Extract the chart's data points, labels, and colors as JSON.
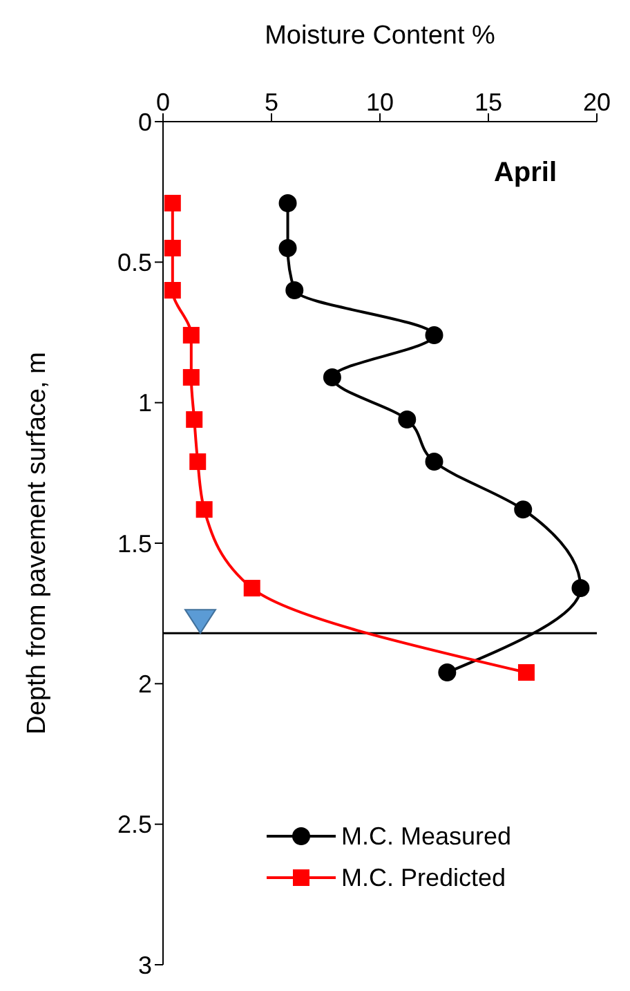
{
  "chart_data": {
    "type": "line",
    "title": "April",
    "xlabel": "Moisture Content %",
    "ylabel": "Depth from pavement surface, m",
    "xlim": [
      0,
      20
    ],
    "xticks": [
      0,
      5,
      10,
      15,
      20
    ],
    "ylim": [
      3,
      0
    ],
    "yticks": [
      0,
      0.5,
      1,
      1.5,
      2,
      2.5,
      3
    ],
    "grid": false,
    "legend": "bottom right",
    "series": [
      {
        "name": "M.C. Measured",
        "color": "#000000",
        "marker": "circle",
        "x": [
          5.75,
          5.75,
          6.06,
          12.5,
          7.8,
          11.25,
          12.5,
          16.6,
          19.25,
          13.1
        ],
        "values": [
          0.29,
          0.45,
          0.6,
          0.76,
          0.91,
          1.06,
          1.21,
          1.38,
          1.66,
          1.96
        ]
      },
      {
        "name": "M.C. Predicted",
        "color": "#ff0000",
        "marker": "square",
        "x": [
          0.44,
          0.44,
          0.44,
          1.3,
          1.3,
          1.44,
          1.6,
          1.9,
          4.1,
          16.75
        ],
        "values": [
          0.29,
          0.45,
          0.6,
          0.76,
          0.91,
          1.06,
          1.21,
          1.38,
          1.66,
          1.96
        ]
      }
    ],
    "ref_lines": [
      {
        "axis": "y",
        "value": 1.82,
        "color": "#000000"
      }
    ]
  }
}
